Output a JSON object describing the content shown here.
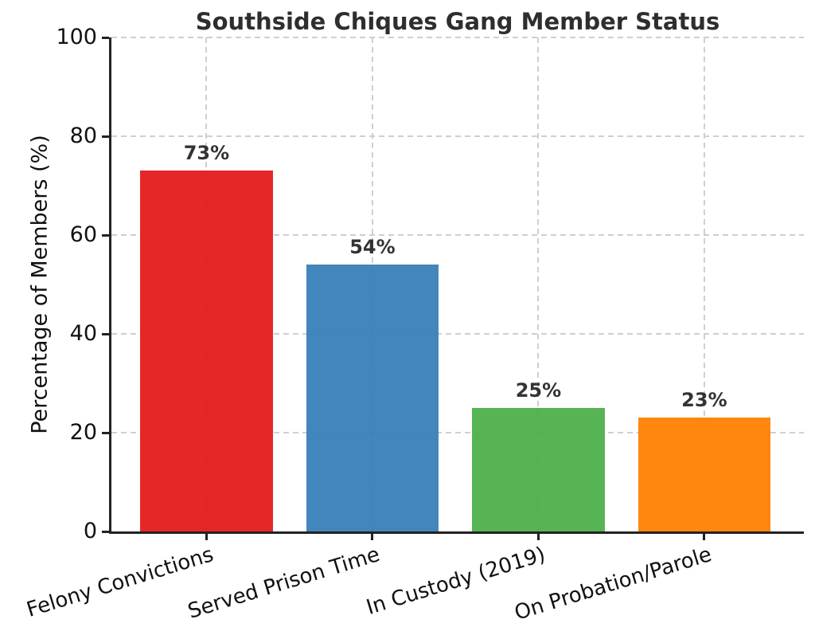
{
  "chart_data": {
    "type": "bar",
    "title": "Southside Chiques Gang Member Status",
    "xlabel": "",
    "ylabel": "Percentage of Members (%)",
    "categories": [
      "Felony Convictions",
      "Served Prison Time",
      "In Custody (2019)",
      "On Probation/Parole"
    ],
    "values": [
      73,
      54,
      25,
      23
    ],
    "value_labels": [
      "73%",
      "54%",
      "25%",
      "23%"
    ],
    "bar_colors": [
      "#e41a1c",
      "#377eb8",
      "#4daf4a",
      "#ff7f00"
    ],
    "ylim": [
      0,
      100
    ],
    "yticks": [
      0,
      20,
      40,
      60,
      80,
      100
    ],
    "ytick_labels": [
      "0",
      "20",
      "40",
      "60",
      "80",
      "100"
    ],
    "grid": true,
    "grid_line_style": "dashed",
    "legend_position": "none",
    "xtick_rotation_deg": -17,
    "bar_alpha": 0.94
  },
  "colors": {
    "grid": "#cfcfcf",
    "spine": "#222222",
    "tick_label": "#111111",
    "title": "#2e2e2e",
    "value_label": "#333333"
  }
}
